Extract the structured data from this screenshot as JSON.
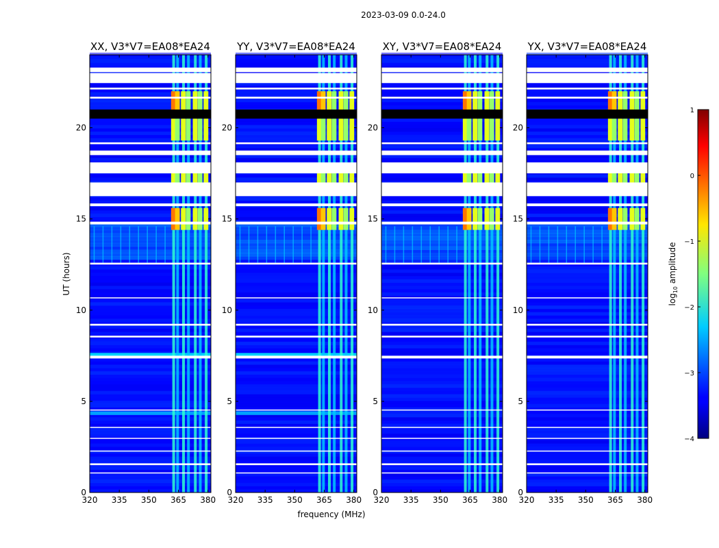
{
  "chart_data": {
    "type": "heatmap",
    "suptitle": "2023-03-09 0.0-24.0",
    "xlabel": "frequency (MHz)",
    "ylabel": "UT (hours)",
    "xlim": [
      320,
      381.5
    ],
    "ylim": [
      0,
      24
    ],
    "xticks": [
      "320",
      "335",
      "350",
      "365",
      "380"
    ],
    "xtick_values": [
      320,
      335,
      350,
      365,
      380
    ],
    "yticks": [
      "0",
      "5",
      "10",
      "15",
      "20"
    ],
    "ytick_values": [
      0,
      5,
      10,
      15,
      20
    ],
    "panels": [
      {
        "title": "XX, V3*V7=EA08*EA24",
        "pol": "XX"
      },
      {
        "title": "YY, V3*V7=EA08*EA24",
        "pol": "YY"
      },
      {
        "title": "XY, V3*V7=EA08*EA24",
        "pol": "XY"
      },
      {
        "title": "YX, V3*V7=EA08*EA24",
        "pol": "YX"
      }
    ],
    "colorbar": {
      "label": "log10 amplitude",
      "label_text": "log",
      "label_sub": "10",
      "label_rest": " amplitude",
      "colormap": "jet",
      "range": [
        -4,
        1
      ],
      "ticks": [
        "−4",
        "−3",
        "−2",
        "−1",
        "0",
        "1"
      ],
      "tick_values": [
        -4,
        -3,
        -2,
        -1,
        0,
        1
      ]
    },
    "rfi_band_mhz": [
      362,
      380
    ],
    "rfi_channels_mhz": [
      362.5,
      364.5,
      367.5,
      370,
      373.5,
      376,
      379
    ],
    "gaps_ut": [
      [
        23.05,
        23.3
      ],
      [
        22.45,
        23.0
      ],
      [
        22.1,
        22.2
      ],
      [
        21.6,
        21.7
      ],
      [
        19.1,
        19.2
      ],
      [
        18.5,
        18.75
      ],
      [
        17.5,
        18.1
      ],
      [
        16.25,
        17.0
      ],
      [
        15.7,
        15.85
      ],
      [
        14.7,
        14.85
      ],
      [
        12.5,
        12.6
      ],
      [
        10.65,
        10.7
      ],
      [
        9.15,
        9.25
      ],
      [
        8.5,
        8.6
      ],
      [
        7.35,
        7.5
      ],
      [
        4.5,
        4.55
      ],
      [
        3.55,
        3.6
      ],
      [
        2.95,
        3.0
      ],
      [
        2.25,
        2.3
      ],
      [
        1.5,
        1.6
      ],
      [
        1.05,
        1.1
      ]
    ],
    "saturated_ut": [
      [
        20.5,
        21.0
      ]
    ]
  }
}
